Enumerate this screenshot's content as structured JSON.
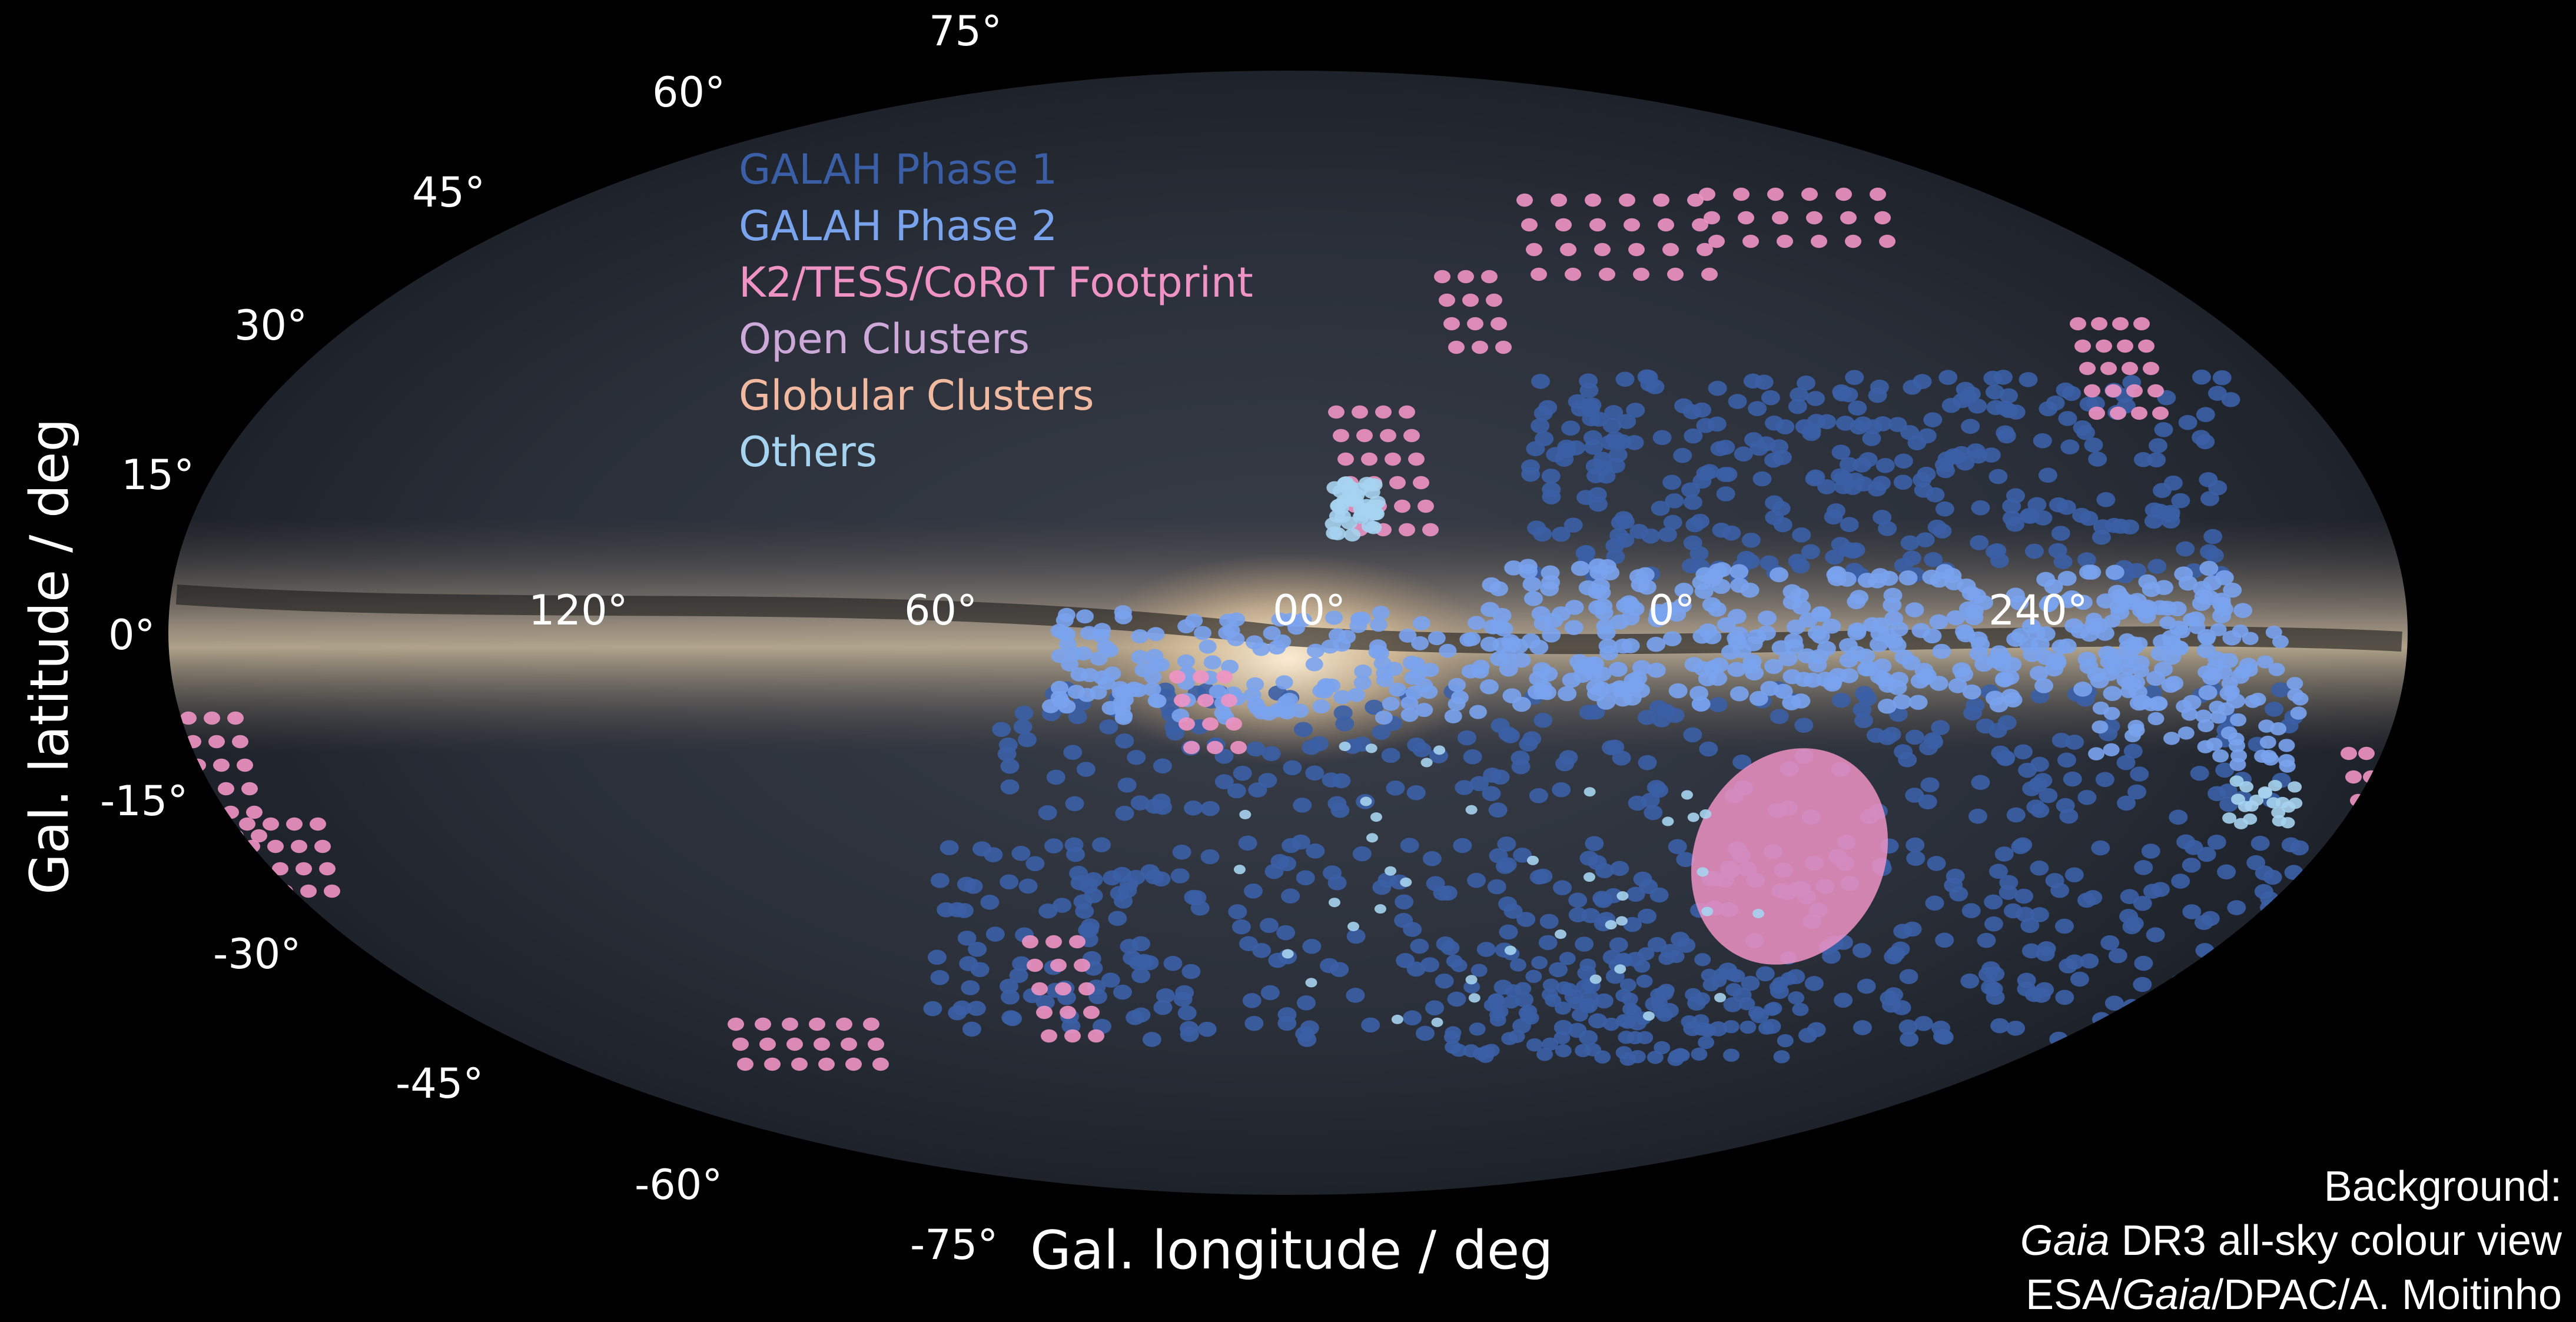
{
  "axes": {
    "ylabel": "Gal. latitude / deg",
    "xlabel": "Gal. longitude / deg",
    "lat_ticks": [
      "75°",
      "60°",
      "45°",
      "30°",
      "15°",
      "0°",
      "-15°",
      "-30°",
      "-45°",
      "-60°",
      "-75°"
    ],
    "lon_ticks": [
      "120°",
      "60°",
      "00°",
      "0°",
      "240°"
    ]
  },
  "legend": [
    {
      "label": "GALAH Phase 1",
      "color": "#3b5fa6"
    },
    {
      "label": "GALAH Phase 2",
      "color": "#7aa3ee"
    },
    {
      "label": "K2/TESS/CoRoT Footprint",
      "color": "#ef93c4"
    },
    {
      "label": "Open Clusters",
      "color": "#cda9d9"
    },
    {
      "label": "Globular Clusters",
      "color": "#f0b9a0"
    },
    {
      "label": "Others",
      "color": "#a6d3ef"
    }
  ],
  "credit": {
    "line1": "Background:",
    "line2_italic": "Gaia",
    "line2_rest": " DR3 all-sky colour view",
    "line3_prefix": "ESA/",
    "line3_italic": "Gaia",
    "line3_rest": "/DPAC/A. Moitinho"
  }
}
